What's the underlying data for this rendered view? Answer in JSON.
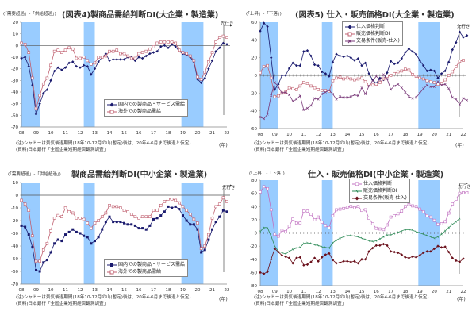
{
  "common": {
    "x_ticks": [
      "08",
      "09",
      "10",
      "11",
      "12",
      "13",
      "14",
      "15",
      "16",
      "17",
      "18",
      "19",
      "20",
      "21",
      "22"
    ],
    "x_unit": "(年)",
    "lead_label": "先行き",
    "note_line1": "(注)シャドーは景気後退期間(18年10-12月の山(暫定)後は、20年4-6月まで後退と仮定)",
    "note_line2": "(資料)日本銀行「全国企業短期経済観測調査」",
    "shade_color": "#99ccff",
    "recessions": [
      [
        2008.0,
        2009.25
      ],
      [
        2012.25,
        2013.0
      ],
      [
        2018.9,
        2020.4
      ]
    ]
  },
  "panels": [
    {
      "id": "p1",
      "title": "(図表4)製商品需給判断DI(大企業・製造業)",
      "y_unit": "(「需要超過」-「供給超過」)",
      "legend": [
        "国内での製商品・サービス需給",
        "海外での製商品需給"
      ]
    },
    {
      "id": "p2",
      "title": "(図表5) 仕入・販売価格DI(大企業・製造業)",
      "y_unit": "(「上昇」-「下落」)",
      "legend": [
        "仕入価格判断",
        "販売価格判断DI",
        "交易条件(販売-仕入)"
      ]
    },
    {
      "id": "p3",
      "title": "製商品需給判断DI(中小企業・製造業)",
      "y_unit": "(「需要超過」-「供給超過」)",
      "legend": [
        "国内での製商品・サービス需給",
        "海外での製商品需給"
      ]
    },
    {
      "id": "p4",
      "title": "仕入・販売価格DI(中小企業・製造業)",
      "y_unit": "(「上昇」-「下落」)",
      "legend": [
        "仕入価格判断",
        "販売価格判断DI",
        "交易条件(販売-仕入)"
      ]
    }
  ],
  "chart_data": [
    {
      "type": "line",
      "title": "(図表4)製商品需給判断DI(大企業・製造業)",
      "ylabel": "(「需要超過」-「供給超過」)",
      "xlabel": "(年)",
      "ylim": [
        -70,
        20
      ],
      "yticks": [
        20,
        10,
        0,
        -10,
        -20,
        -30,
        -40,
        -50,
        -60,
        -70
      ],
      "x_start": 2008.0,
      "x_step": 0.25,
      "series": [
        {
          "name": "国内での製商品・サービス需給",
          "color": "#1a1a6e",
          "marker": "filled-diamond",
          "values": [
            -11,
            -10,
            -18,
            -34,
            -59,
            -50,
            -41,
            -38,
            -30,
            -22,
            -19,
            -21,
            -19,
            -15,
            -14,
            -18,
            -19,
            -17,
            -18,
            -25,
            -20,
            -14,
            -10,
            -7,
            -13,
            -12,
            -12,
            -12,
            -12,
            -10,
            -10,
            -13,
            -10,
            -11,
            -9,
            -7,
            -6,
            -5,
            -1,
            0,
            -2,
            1,
            -1,
            -5,
            -7,
            -8,
            -10,
            -14,
            -29,
            -32,
            -28,
            -20,
            -13,
            -5,
            -2,
            2,
            1
          ]
        },
        {
          "name": "海外での製商品需給",
          "color": "#c06070",
          "marker": "open-square",
          "values": [
            2,
            1,
            -6,
            -28,
            -54,
            -43,
            -33,
            -28,
            -17,
            -5,
            -4,
            -6,
            -4,
            -2,
            -3,
            -11,
            -11,
            -10,
            -13,
            -16,
            -15,
            -10,
            -10,
            -9,
            -5,
            -5,
            -4,
            -7,
            -7,
            -9,
            -11,
            -11,
            -7,
            -6,
            -5,
            -3,
            -1,
            2,
            3,
            3,
            3,
            3,
            2,
            -4,
            -6,
            -7,
            -9,
            -13,
            -27,
            -29,
            -23,
            -14,
            -6,
            3,
            7,
            8,
            7
          ]
        }
      ],
      "legend_position": "lower center"
    },
    {
      "type": "line",
      "title": "(図表5) 仕入・販売価格DI(大企業・製造業)",
      "ylabel": "(「上昇」-「下落」)",
      "xlabel": "(年)",
      "ylim": [
        -60,
        60
      ],
      "yticks": [
        60,
        40,
        20,
        0,
        -20,
        -40,
        -60
      ],
      "x_start": 2008.0,
      "x_step": 0.25,
      "series": [
        {
          "name": "仕入価格判断",
          "color": "#1a1a6e",
          "marker": "filled-diamond",
          "values": [
            50,
            59,
            55,
            20,
            -16,
            -10,
            0,
            0,
            8,
            14,
            11,
            11,
            27,
            28,
            22,
            12,
            11,
            4,
            2,
            -1,
            15,
            24,
            22,
            21,
            22,
            20,
            17,
            19,
            11,
            14,
            2,
            -5,
            -9,
            -3,
            -5,
            3,
            16,
            13,
            14,
            19,
            26,
            30,
            27,
            24,
            17,
            11,
            5,
            6,
            5,
            -3,
            2,
            5,
            15,
            29,
            37,
            49,
            43,
            45
          ]
        },
        {
          "name": "販売価格判断DI",
          "color": "#c06070",
          "marker": "open-square",
          "values": [
            3,
            10,
            11,
            -3,
            -24,
            -23,
            -20,
            -19,
            -14,
            -15,
            -16,
            -12,
            -8,
            -9,
            -12,
            -14,
            -16,
            -17,
            -17,
            -18,
            -6,
            -3,
            -2,
            -4,
            -3,
            -4,
            -5,
            -4,
            -3,
            -7,
            -10,
            -11,
            -10,
            -8,
            -4,
            -1,
            0,
            2,
            4,
            5,
            7,
            6,
            1,
            -1,
            -3,
            -4,
            -6,
            -7,
            -8,
            -10,
            -9,
            -5,
            0,
            4,
            10,
            16,
            17
          ]
        },
        {
          "name": "交易条件(販売-仕入)",
          "color": "#7a3a7a",
          "marker": "x-cross",
          "values": [
            -47,
            -49,
            -44,
            -23,
            -8,
            -13,
            -20,
            -19,
            -22,
            -29,
            -27,
            -23,
            -39,
            -37,
            -34,
            -26,
            -27,
            -21,
            -19,
            -17,
            -21,
            -27,
            -24,
            -25,
            -25,
            -24,
            -22,
            -23,
            -14,
            -21,
            -12,
            -6,
            -1,
            -5,
            1,
            -4,
            -16,
            -12,
            -10,
            -14,
            -19,
            -24,
            -26,
            -25,
            -20,
            -15,
            -11,
            -13,
            -13,
            -7,
            -11,
            -10,
            -15,
            -25,
            -27,
            -33,
            -26,
            -28
          ]
        }
      ],
      "legend_position": "upper center"
    },
    {
      "type": "line",
      "title": "製商品需給判断DI(中小企業・製造業)",
      "ylabel": "(「需要超過」-「供給超過」)",
      "xlabel": "(年)",
      "ylim": [
        -70,
        10
      ],
      "yticks": [
        10,
        0,
        -10,
        -20,
        -30,
        -40,
        -50,
        -60,
        -70
      ],
      "x_start": 2008.0,
      "x_step": 0.25,
      "series": [
        {
          "name": "国内での製商品・サービス需給",
          "color": "#1a1a6e",
          "marker": "filled-square",
          "values": [
            -24,
            -25,
            -31,
            -41,
            -59,
            -60,
            -53,
            -51,
            -45,
            -38,
            -35,
            -36,
            -31,
            -29,
            -27,
            -29,
            -30,
            -32,
            -33,
            -38,
            -36,
            -33,
            -27,
            -21,
            -17,
            -21,
            -21,
            -21,
            -22,
            -23,
            -23,
            -24,
            -26,
            -26,
            -27,
            -24,
            -19,
            -18,
            -16,
            -13,
            -9,
            -10,
            -9,
            -11,
            -16,
            -20,
            -23,
            -23,
            -27,
            -45,
            -43,
            -35,
            -27,
            -21,
            -17,
            -12,
            -13
          ]
        },
        {
          "name": "海外での製商品需給",
          "color": "#c06070",
          "marker": "open-square",
          "values": [
            -4,
            -7,
            -12,
            -32,
            -52,
            -52,
            -43,
            -38,
            -28,
            -18,
            -16,
            -17,
            -10,
            -13,
            -14,
            -18,
            -18,
            -19,
            -22,
            -26,
            -22,
            -20,
            -17,
            -14,
            -8,
            -9,
            -9,
            -10,
            -12,
            -13,
            -15,
            -17,
            -18,
            -17,
            -17,
            -17,
            -12,
            -12,
            -8,
            -5,
            -3,
            -3,
            -4,
            -6,
            -9,
            -12,
            -15,
            -19,
            -22,
            -42,
            -40,
            -31,
            -18,
            -9,
            -7,
            -2,
            -5
          ]
        }
      ],
      "legend_position": "lower center"
    },
    {
      "type": "line",
      "title": "仕入・販売価格DI(中小企業・製造業)",
      "ylabel": "(「上昇」-「下落」)",
      "xlabel": "(年)",
      "ylim": [
        -80,
        80
      ],
      "yticks": [
        80,
        60,
        40,
        20,
        0,
        -20,
        -40,
        -60,
        -80
      ],
      "x_start": 2008.0,
      "x_step": 0.25,
      "series": [
        {
          "name": "仕入価格判断",
          "color": "#c070c0",
          "marker": "open-square",
          "values": [
            62,
            70,
            67,
            35,
            -2,
            -5,
            4,
            2,
            10,
            21,
            15,
            15,
            33,
            33,
            28,
            20,
            24,
            16,
            11,
            8,
            26,
            35,
            36,
            37,
            39,
            40,
            38,
            40,
            34,
            35,
            22,
            14,
            7,
            6,
            5,
            12,
            24,
            26,
            29,
            33,
            40,
            43,
            41,
            40,
            36,
            32,
            26,
            24,
            19,
            13,
            14,
            17,
            30,
            44,
            51,
            60,
            61,
            61
          ]
        },
        {
          "name": "販売価格判断DI",
          "color": "#2e8b57",
          "marker": "small-dash",
          "values": [
            2,
            8,
            8,
            -5,
            -20,
            -28,
            -30,
            -32,
            -28,
            -25,
            -23,
            -22,
            -16,
            -15,
            -16,
            -18,
            -19,
            -21,
            -22,
            -23,
            -15,
            -11,
            -8,
            -6,
            -4,
            -4,
            -5,
            -6,
            -8,
            -10,
            -12,
            -13,
            -12,
            -9,
            -6,
            -3,
            -3,
            -1,
            1,
            3,
            5,
            5,
            4,
            2,
            0,
            -2,
            -4,
            -6,
            -8,
            -6,
            -2,
            3,
            8,
            13,
            17,
            22
          ]
        },
        {
          "name": "交易条件(販売-仕入)",
          "color": "#6a0f1a",
          "marker": "filled-diamond",
          "values": [
            -60,
            -62,
            -59,
            -40,
            -24,
            -29,
            -34,
            -36,
            -38,
            -46,
            -38,
            -37,
            -49,
            -48,
            -44,
            -38,
            -43,
            -37,
            -33,
            -31,
            -41,
            -46,
            -45,
            -43,
            -43,
            -44,
            -43,
            -46,
            -40,
            -40,
            -28,
            -23,
            -19,
            -19,
            -17,
            -19,
            -28,
            -29,
            -30,
            -33,
            -37,
            -38,
            -36,
            -37,
            -34,
            -30,
            -28,
            -28,
            -24,
            -20,
            -22,
            -21,
            -29,
            -38,
            -42,
            -44,
            -39
          ]
        }
      ],
      "legend_position": "upper center"
    }
  ]
}
